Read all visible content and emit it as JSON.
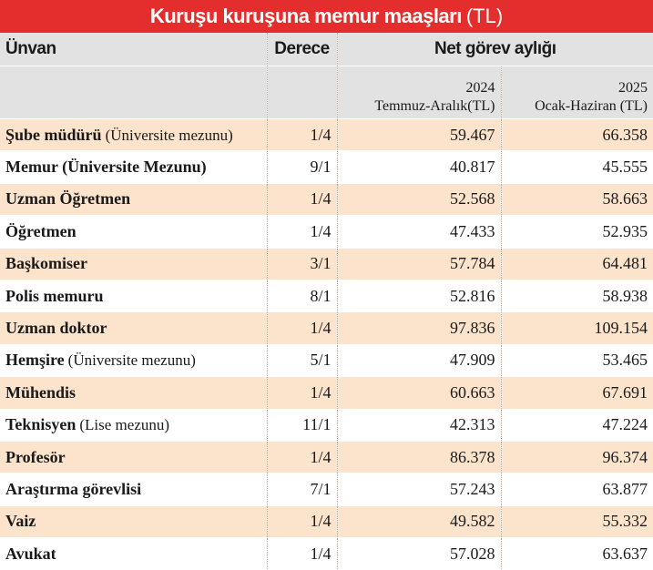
{
  "title": {
    "main": "Kuruşu kuruşuna memur maaşları",
    "unit": "(TL)"
  },
  "table": {
    "headers": [
      "Ünvan",
      "Derece",
      "Net görev aylığı"
    ],
    "subheaders": [
      {
        "year": "2024",
        "period": "Temmuz-Aralık(TL)"
      },
      {
        "year": "2025",
        "period": "Ocak-Haziran (TL)"
      }
    ],
    "rows": [
      {
        "title": "Şube müdürü",
        "note": "(Üniversite mezunu)",
        "grade": "1/4",
        "net_2024": "59.467",
        "net_2025": "66.358"
      },
      {
        "title": "Memur (Üniversite Mezunu)",
        "grade": "9/1",
        "net_2024": "40.817",
        "net_2025": "45.555"
      },
      {
        "title": "Uzman Öğretmen",
        "grade": "1/4",
        "net_2024": "52.568",
        "net_2025": "58.663"
      },
      {
        "title": "Öğretmen",
        "grade": "1/4",
        "net_2024": "47.433",
        "net_2025": "52.935"
      },
      {
        "title": "Başkomiser",
        "grade": "3/1",
        "net_2024": "57.784",
        "net_2025": "64.481"
      },
      {
        "title": "Polis memuru",
        "grade": "8/1",
        "net_2024": "52.816",
        "net_2025": "58.938"
      },
      {
        "title": "Uzman doktor",
        "grade": "1/4",
        "net_2024": "97.836",
        "net_2025": "109.154"
      },
      {
        "title": "Hemşire",
        "note": "(Üniversite mezunu)",
        "grade": "5/1",
        "net_2024": "47.909",
        "net_2025": "53.465"
      },
      {
        "title": "Mühendis",
        "grade": "1/4",
        "net_2024": "60.663",
        "net_2025": "67.691"
      },
      {
        "title": "Teknisyen",
        "note": "(Lise mezunu)",
        "grade": "11/1",
        "net_2024": "42.313",
        "net_2025": "47.224"
      },
      {
        "title": "Profesör",
        "grade": "1/4",
        "net_2024": "86.378",
        "net_2025": "96.374"
      },
      {
        "title": "Araştırma görevlisi",
        "grade": "7/1",
        "net_2024": "57.243",
        "net_2025": "63.877"
      },
      {
        "title": "Vaiz",
        "grade": "1/4",
        "net_2024": "49.582",
        "net_2025": "55.332"
      },
      {
        "title": "Avukat",
        "grade": "1/4",
        "net_2024": "57.028",
        "net_2025": "63.637"
      }
    ]
  }
}
